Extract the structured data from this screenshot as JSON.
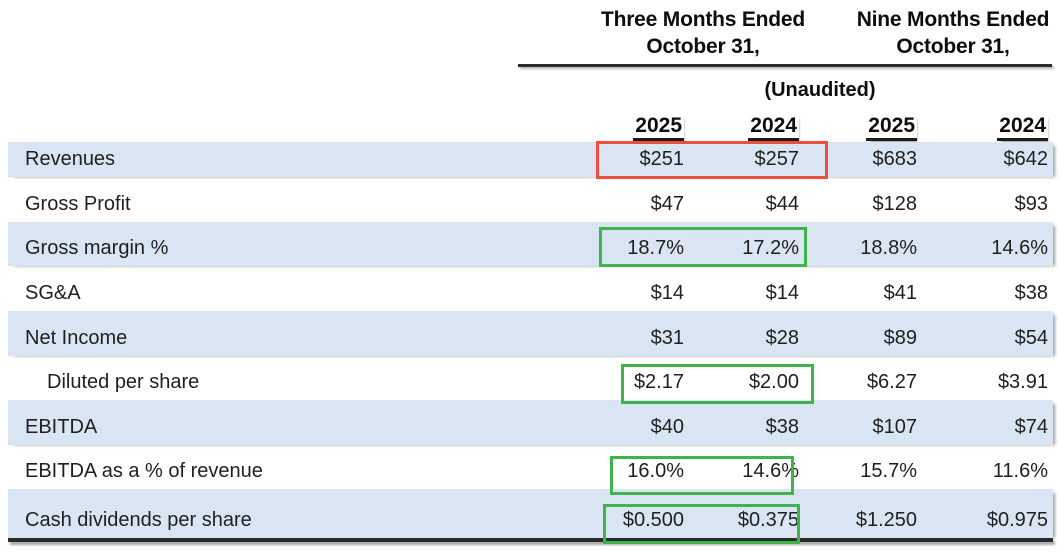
{
  "chart_data": {
    "type": "table",
    "col_groups": [
      {
        "title_line1": "Three Months Ended",
        "title_line2": "October 31,"
      },
      {
        "title_line1": "Nine Months Ended",
        "title_line2": "October 31,"
      }
    ],
    "subtitle": "(Unaudited)",
    "columns": [
      "2025",
      "2024",
      "2025",
      "2024"
    ],
    "rows": [
      {
        "label": "Revenues",
        "indent": false,
        "values": [
          "$251",
          "$257",
          "$683",
          "$642"
        ],
        "highlight": "red"
      },
      {
        "label": "Gross Profit",
        "indent": false,
        "values": [
          "$47",
          "$44",
          "$128",
          "$93"
        ],
        "highlight": null
      },
      {
        "label": "Gross margin %",
        "indent": false,
        "values": [
          "18.7%",
          "17.2%",
          "18.8%",
          "14.6%"
        ],
        "highlight": "green"
      },
      {
        "label": "SG&A",
        "indent": false,
        "values": [
          "$14",
          "$14",
          "$41",
          "$38"
        ],
        "highlight": null
      },
      {
        "label": "Net Income",
        "indent": false,
        "values": [
          "$31",
          "$28",
          "$89",
          "$54"
        ],
        "highlight": null
      },
      {
        "label": "Diluted per share",
        "indent": true,
        "values": [
          "$2.17",
          "$2.00",
          "$6.27",
          "$3.91"
        ],
        "highlight": "green"
      },
      {
        "label": "EBITDA",
        "indent": false,
        "values": [
          "$40",
          "$38",
          "$107",
          "$74"
        ],
        "highlight": null
      },
      {
        "label": "EBITDA as a % of revenue",
        "indent": false,
        "values": [
          "16.0%",
          "14.6%",
          "15.7%",
          "11.6%"
        ],
        "highlight": "green"
      },
      {
        "label": "Cash dividends per share",
        "indent": false,
        "values": [
          "$0.500",
          "$0.375",
          "$1.250",
          "$0.975"
        ],
        "highlight": "green"
      }
    ],
    "highlights_note": "boxes surround the Three Months Ended 2025/2024 value pairs",
    "layout": {
      "zebra_striping": true,
      "values_alignment": "right"
    }
  },
  "colors": {
    "stripe_blue": "#d9e5f2",
    "highlight_red": "#f04c42",
    "highlight_green": "#3cb54a",
    "rule_dark": "#2b2b2b"
  }
}
